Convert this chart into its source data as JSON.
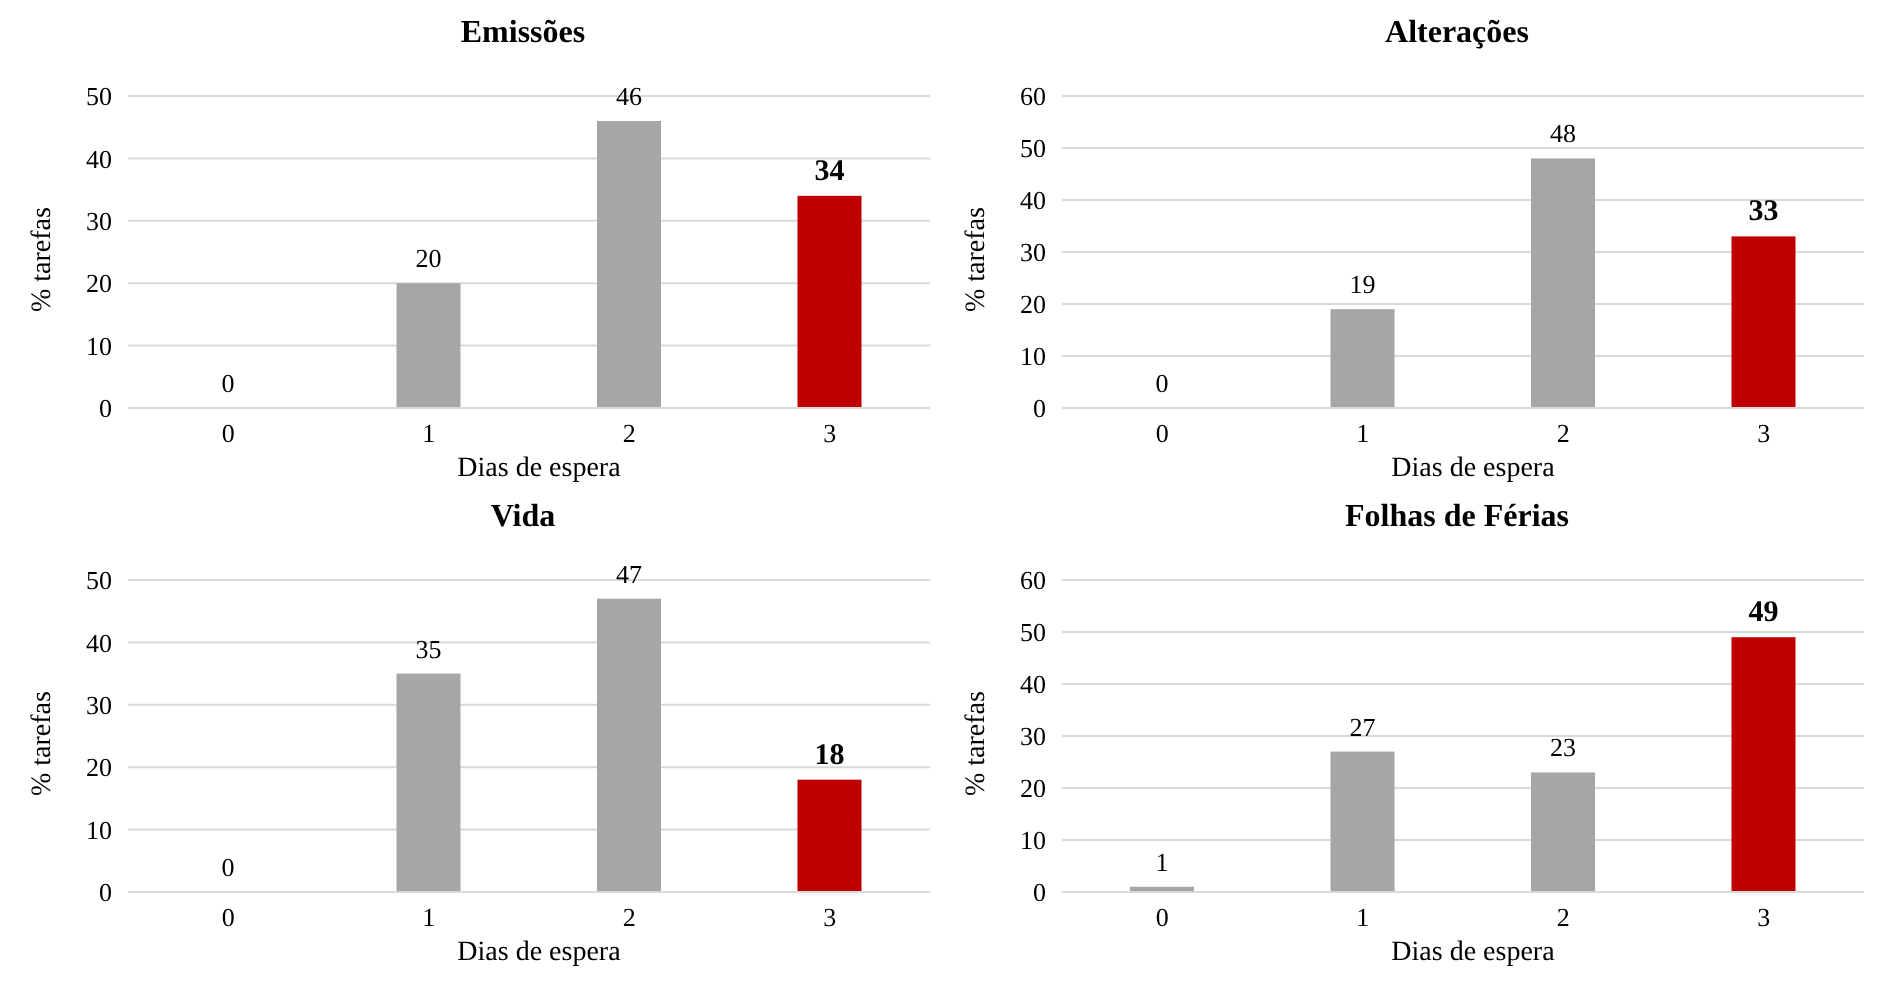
{
  "chart_data": [
    {
      "type": "bar",
      "title": "Emissões",
      "xlabel": "Dias de espera",
      "ylabel": "% tarefas",
      "categories": [
        "0",
        "1",
        "2",
        "3"
      ],
      "values": [
        0,
        20,
        46,
        34
      ],
      "colors": [
        "#a6a6a6",
        "#a6a6a6",
        "#a6a6a6",
        "#c00000"
      ],
      "ylim": [
        0,
        50
      ],
      "yticks": [
        0,
        10,
        20,
        30,
        40,
        50
      ],
      "grid": "y",
      "data_labels": true,
      "legend": false
    },
    {
      "type": "bar",
      "title": "Alterações",
      "xlabel": "Dias de espera",
      "ylabel": "% tarefas",
      "categories": [
        "0",
        "1",
        "2",
        "3"
      ],
      "values": [
        0,
        19,
        48,
        33
      ],
      "colors": [
        "#a6a6a6",
        "#a6a6a6",
        "#a6a6a6",
        "#c00000"
      ],
      "ylim": [
        0,
        60
      ],
      "yticks": [
        0,
        10,
        20,
        30,
        40,
        50,
        60
      ],
      "grid": "y",
      "data_labels": true,
      "legend": false
    },
    {
      "type": "bar",
      "title": "Vida",
      "xlabel": "Dias de espera",
      "ylabel": "% tarefas",
      "categories": [
        "0",
        "1",
        "2",
        "3"
      ],
      "values": [
        0,
        35,
        47,
        18
      ],
      "colors": [
        "#a6a6a6",
        "#a6a6a6",
        "#a6a6a6",
        "#c00000"
      ],
      "ylim": [
        0,
        50
      ],
      "yticks": [
        0,
        10,
        20,
        30,
        40,
        50
      ],
      "grid": "y",
      "data_labels": true,
      "legend": false
    },
    {
      "type": "bar",
      "title": "Folhas de Férias",
      "xlabel": "Dias de espera",
      "ylabel": "% tarefas",
      "categories": [
        "0",
        "1",
        "2",
        "3"
      ],
      "values": [
        1,
        27,
        23,
        49
      ],
      "colors": [
        "#a6a6a6",
        "#a6a6a6",
        "#a6a6a6",
        "#c00000"
      ],
      "ylim": [
        0,
        60
      ],
      "yticks": [
        0,
        10,
        20,
        30,
        40,
        50,
        60
      ],
      "grid": "y",
      "data_labels": true,
      "legend": false
    }
  ]
}
